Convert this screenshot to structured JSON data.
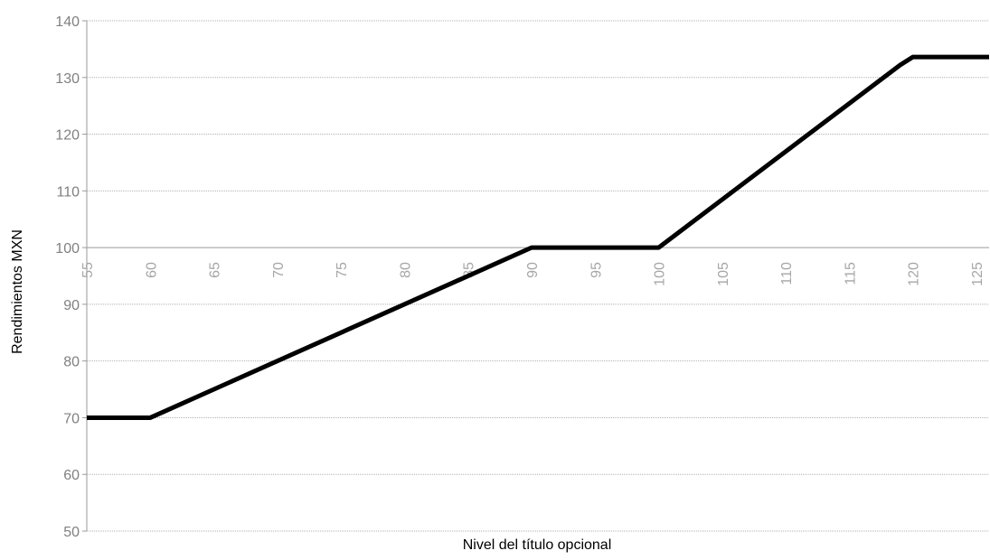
{
  "chart_data": {
    "type": "line",
    "xlabel": "Nivel del título opcional",
    "ylabel": "Rendimientos MXN",
    "xlim": [
      55,
      126
    ],
    "ylim": [
      50,
      140
    ],
    "y_ticks": [
      50,
      60,
      70,
      80,
      90,
      100,
      110,
      120,
      130,
      140
    ],
    "x_ticks": [
      55,
      60,
      65,
      70,
      75,
      80,
      85,
      90,
      95,
      100,
      105,
      110,
      115,
      120,
      125
    ],
    "x_tick_labels": [
      "55",
      "60",
      "65",
      "70",
      "75",
      "80",
      "85",
      "90",
      "95",
      "100",
      "105",
      "110",
      "115",
      "120",
      "125"
    ],
    "y_tick_labels": [
      "50",
      "60",
      "70",
      "80",
      "90",
      "100",
      "110",
      "120",
      "130",
      "140"
    ],
    "x_axis_crosses_at": 100,
    "grid": true,
    "legend": "none",
    "series": [
      {
        "points": [
          [
            55,
            70
          ],
          [
            60,
            70
          ],
          [
            90,
            100
          ],
          [
            100,
            100
          ],
          [
            119,
            132.2
          ],
          [
            120,
            133.6
          ],
          [
            126,
            133.6
          ]
        ],
        "color": "#000000"
      }
    ],
    "colors": {
      "line": "#000000",
      "grid": "#b0b0b0",
      "axis_text": "#808080",
      "x_tick_text": "#a6a6a6",
      "label_text": "#000000"
    }
  }
}
